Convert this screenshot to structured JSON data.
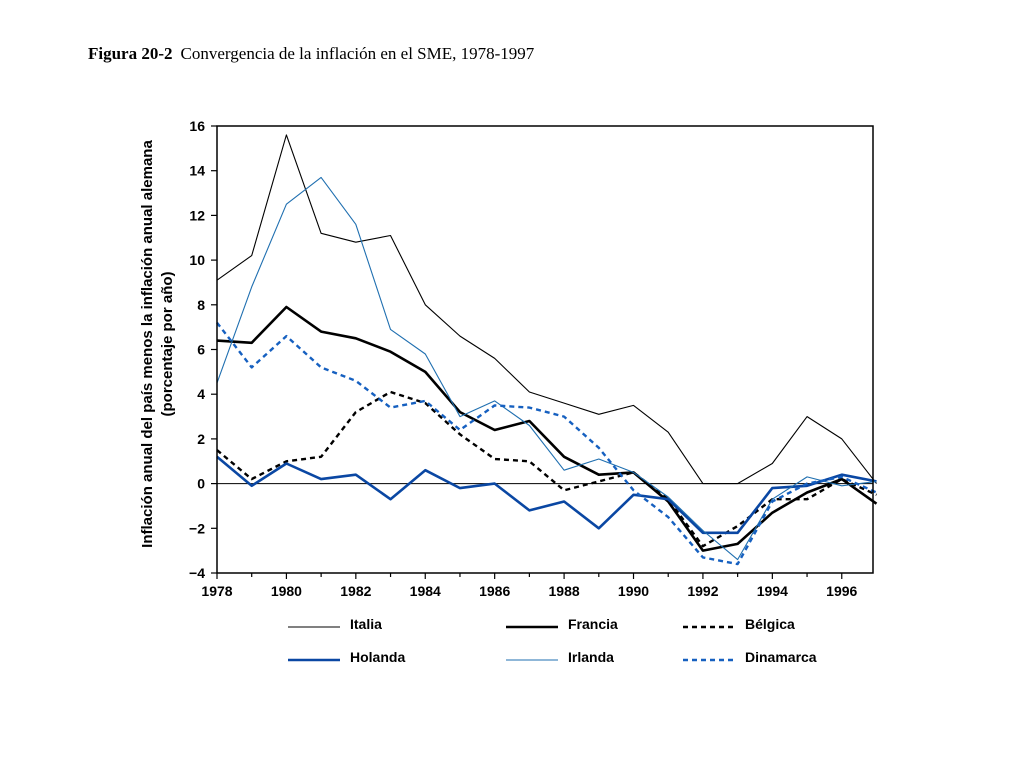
{
  "caption": {
    "figure_number": "Figura 20-2",
    "title": "Convergencia de la inflación en el SME, 1978-1997"
  },
  "chart_data": {
    "type": "line",
    "title": "Convergencia de la inflación en el SME, 1978-1997",
    "ylabel_line1": "Inflación anual del país menos la inflación anual alemana",
    "ylabel_line2": "(porcentaje por año)",
    "xlabel": "",
    "xlim": [
      1978,
      1996.9
    ],
    "ylim": [
      -4,
      16
    ],
    "x_ticks": [
      1978,
      1980,
      1982,
      1984,
      1986,
      1988,
      1990,
      1992,
      1994,
      1996
    ],
    "y_ticks": [
      -4,
      -2,
      0,
      2,
      4,
      6,
      8,
      10,
      12,
      14,
      16
    ],
    "y_tick_labels": [
      "−4",
      "−2",
      "0",
      "2",
      "4",
      "6",
      "8",
      "10",
      "12",
      "14",
      "16"
    ],
    "zero_line": true,
    "x": [
      1978,
      1979,
      1980,
      1981,
      1982,
      1983,
      1984,
      1985,
      1986,
      1987,
      1988,
      1989,
      1990,
      1991,
      1992,
      1993,
      1994,
      1995,
      1996,
      1997
    ],
    "series": [
      {
        "name": "Italia",
        "color": "#000000",
        "style": "thin-solid",
        "values": [
          9.1,
          10.2,
          15.6,
          11.2,
          10.8,
          11.1,
          8.0,
          6.6,
          5.6,
          4.1,
          3.6,
          3.1,
          3.5,
          2.3,
          0.0,
          0.0,
          0.9,
          3.0,
          2.0,
          0.0
        ]
      },
      {
        "name": "Francia",
        "color": "#000000",
        "style": "thick-solid",
        "values": [
          6.4,
          6.3,
          7.9,
          6.8,
          6.5,
          5.9,
          5.0,
          3.2,
          2.4,
          2.8,
          1.2,
          0.4,
          0.5,
          -0.8,
          -3.0,
          -2.7,
          -1.3,
          -0.4,
          0.2,
          -0.9
        ]
      },
      {
        "name": "Bélgica",
        "color": "#000000",
        "style": "dashed",
        "values": [
          1.5,
          0.2,
          1.0,
          1.2,
          3.2,
          4.1,
          3.6,
          2.2,
          1.1,
          1.0,
          -0.3,
          0.1,
          0.5,
          -0.7,
          -2.8,
          -1.9,
          -0.7,
          -0.7,
          0.2,
          -0.5
        ]
      },
      {
        "name": "Holanda",
        "color": "#0a47a3",
        "style": "thick-solid",
        "values": [
          1.2,
          -0.1,
          0.9,
          0.2,
          0.4,
          -0.7,
          0.6,
          -0.2,
          0.0,
          -1.2,
          -0.8,
          -2.0,
          -0.5,
          -0.7,
          -2.2,
          -2.2,
          -0.2,
          -0.1,
          0.4,
          0.1
        ]
      },
      {
        "name": "Irlanda",
        "color": "#1f6fb0",
        "style": "thin-solid",
        "values": [
          4.5,
          8.8,
          12.5,
          13.7,
          11.6,
          6.9,
          5.8,
          3.0,
          3.7,
          2.6,
          0.6,
          1.1,
          0.5,
          -0.6,
          -2.1,
          -3.4,
          -0.7,
          0.3,
          -0.1,
          0.1
        ]
      },
      {
        "name": "Dinamarca",
        "color": "#1660c0",
        "style": "dashed",
        "values": [
          7.2,
          5.2,
          6.6,
          5.2,
          4.6,
          3.4,
          3.7,
          2.4,
          3.5,
          3.4,
          3.0,
          1.6,
          -0.3,
          -1.5,
          -3.3,
          -3.6,
          -0.8,
          0.0,
          0.3,
          -0.4
        ]
      }
    ],
    "legend": {
      "placement": "bottom",
      "entries": [
        "Italia",
        "Francia",
        "Bélgica",
        "Holanda",
        "Irlanda",
        "Dinamarca"
      ]
    }
  }
}
